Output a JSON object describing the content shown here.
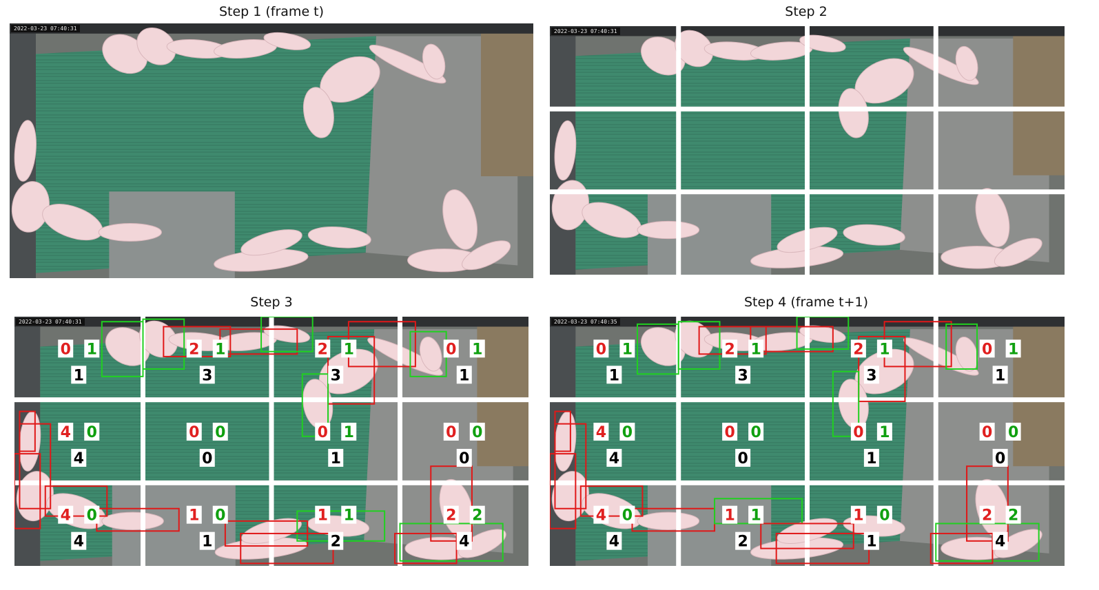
{
  "titles": {
    "step1": "Step 1 (frame t)",
    "step2": "Step 2",
    "step3": "Step 3",
    "step4": "Step 4 (frame t+1)"
  },
  "timestamps": {
    "frame_t": "2022-03-23 07:40:31",
    "frame_t1": "2022-03-23 07:40:35"
  },
  "colors": {
    "exit": "#e02020",
    "enter": "#10a010",
    "box_red": "#e01818",
    "box_green": "#20d020",
    "pen_green": "#3f8a6e",
    "floor_grey": "#8d8f8d",
    "pig": "#f2d6d9"
  },
  "step3_grid": [
    [
      {
        "exit": "0",
        "enter": "1",
        "total": "1"
      },
      {
        "exit": "2",
        "enter": "1",
        "total": "3"
      },
      {
        "exit": "2",
        "enter": "1",
        "total": "3"
      },
      {
        "exit": "0",
        "enter": "1",
        "total": "1"
      }
    ],
    [
      {
        "exit": "4",
        "enter": "0",
        "total": "4"
      },
      {
        "exit": "0",
        "enter": "0",
        "total": "0"
      },
      {
        "exit": "0",
        "enter": "1",
        "total": "1"
      },
      {
        "exit": "0",
        "enter": "0",
        "total": "0"
      }
    ],
    [
      {
        "exit": "4",
        "enter": "0",
        "total": "4"
      },
      {
        "exit": "1",
        "enter": "0",
        "total": "1"
      },
      {
        "exit": "1",
        "enter": "1",
        "total": "2"
      },
      {
        "exit": "2",
        "enter": "2",
        "total": "4"
      }
    ]
  ],
  "step4_grid": [
    [
      {
        "exit": "0",
        "enter": "1",
        "total": "1"
      },
      {
        "exit": "2",
        "enter": "1",
        "total": "3"
      },
      {
        "exit": "2",
        "enter": "1",
        "total": "3"
      },
      {
        "exit": "0",
        "enter": "1",
        "total": "1"
      }
    ],
    [
      {
        "exit": "4",
        "enter": "0",
        "total": "4"
      },
      {
        "exit": "0",
        "enter": "0",
        "total": "0"
      },
      {
        "exit": "0",
        "enter": "1",
        "total": "1"
      },
      {
        "exit": "0",
        "enter": "0",
        "total": "0"
      }
    ],
    [
      {
        "exit": "4",
        "enter": "0",
        "total": "4"
      },
      {
        "exit": "1",
        "enter": "1",
        "total": "2"
      },
      {
        "exit": "1",
        "enter": "0",
        "total": "1"
      },
      {
        "exit": "2",
        "enter": "2",
        "total": "4"
      }
    ]
  ]
}
